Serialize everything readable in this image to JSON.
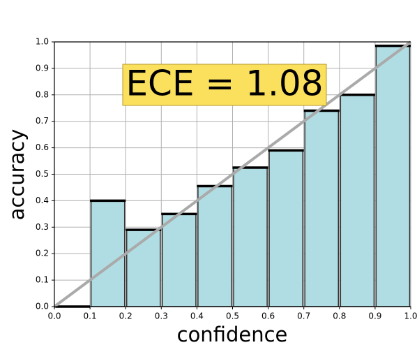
{
  "chart_data": {
    "type": "histogram",
    "annotation": "ECE = 1.08",
    "xlabel": "confidence",
    "ylabel": "accuracy",
    "bins": [
      0,
      0.1,
      0.2,
      0.3,
      0.4,
      0.5,
      0.6,
      0.7,
      0.8,
      0.9,
      1.0
    ],
    "values": [
      0,
      0.4,
      0.29,
      0.35,
      0.455,
      0.525,
      0.59,
      0.74,
      0.8,
      0.985
    ],
    "color": "#b0dde3",
    "xlim": [
      0,
      1
    ],
    "ylim": [
      0,
      1
    ],
    "xticks": [
      {
        "value": 0,
        "label": "0.0"
      },
      0.1,
      0.2,
      0.3,
      0.4,
      0.5,
      0.6,
      0.7,
      0.8,
      0.9,
      {
        "value": 1,
        "label": "1.0"
      }
    ],
    "yticks": [
      {
        "value": 0,
        "label": "0.0"
      },
      0.1,
      0.2,
      0.3,
      0.4,
      0.5,
      0.6,
      0.7,
      0.8,
      0.9,
      {
        "value": 1,
        "label": "1.0"
      }
    ],
    "grid": true
  }
}
